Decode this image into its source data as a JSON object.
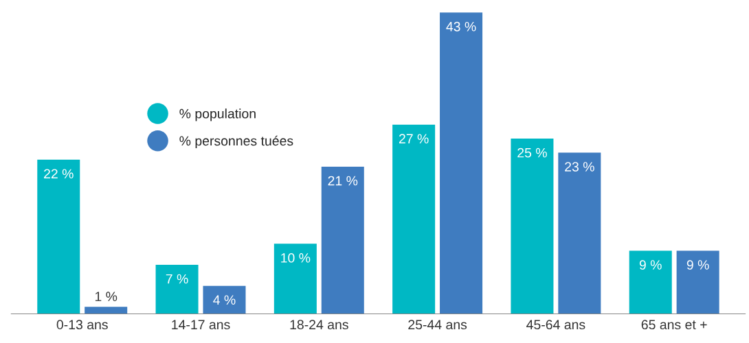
{
  "chart_data": {
    "type": "bar",
    "categories": [
      "0-13 ans",
      "14-17 ans",
      "18-24 ans",
      "25-44 ans",
      "45-64 ans",
      "65 ans et +"
    ],
    "series": [
      {
        "name": "% population",
        "color": "#00b8c4",
        "values": [
          22,
          7,
          10,
          27,
          25,
          9
        ],
        "value_labels": [
          "22 %",
          "7 %",
          "10 %",
          "27 %",
          "25 %",
          "9 %"
        ]
      },
      {
        "name": "% personnes tuées",
        "color": "#3f7cc0",
        "values": [
          1,
          4,
          21,
          43,
          23,
          9
        ],
        "value_labels": [
          "1 %",
          "4 %",
          "21 %",
          "43 %",
          "23 %",
          "9 %"
        ]
      }
    ],
    "legend": "top left",
    "grid": false
  }
}
